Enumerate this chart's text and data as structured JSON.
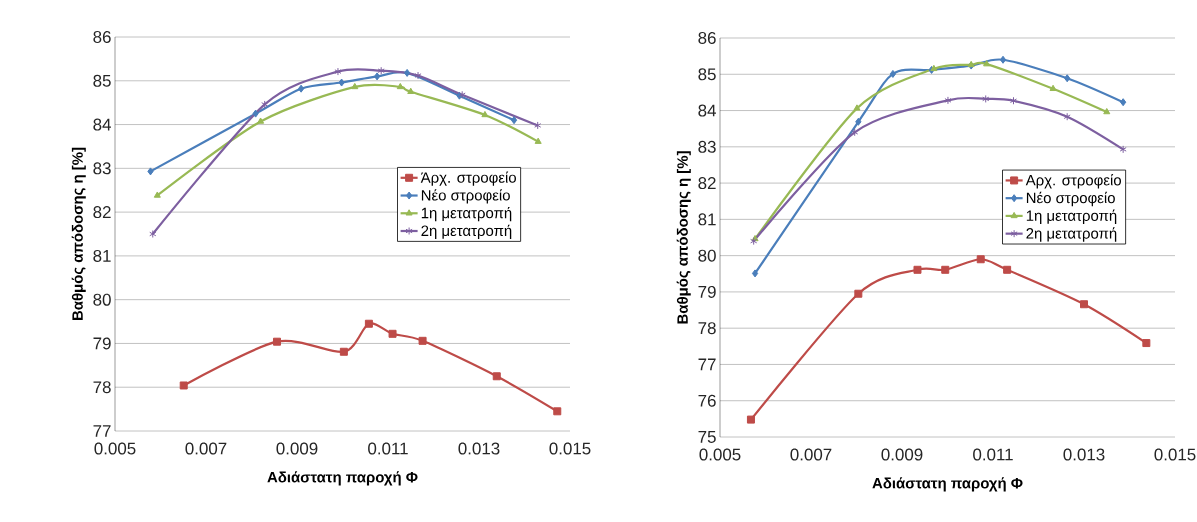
{
  "chart_data": [
    {
      "type": "line",
      "xlabel": "Αδιάστατη παροχή Φ",
      "ylabel": "Βαθμός απόδοσης η [%]",
      "xlim": [
        0.005,
        0.015
      ],
      "xticks": [
        0.005,
        0.007,
        0.009,
        0.011,
        0.013,
        0.015
      ],
      "ylim": [
        77,
        86
      ],
      "yticks": [
        77,
        78,
        79,
        80,
        81,
        82,
        83,
        84,
        85,
        86
      ],
      "grid": "y",
      "legend": "right",
      "line_style": "solid",
      "series": [
        {
          "name": "Άρχ. στροφείο",
          "color": "#be4b48",
          "marker": "square",
          "x": [
            0.00651,
            0.00856,
            0.01003,
            0.01058,
            0.0111,
            0.01176,
            0.01339,
            0.01472
          ],
          "values": [
            78.04,
            79.04,
            78.81,
            79.45,
            79.22,
            79.06,
            78.25,
            77.45
          ]
        },
        {
          "name": "Νέο στροφείο",
          "color": "#4a7ebb",
          "marker": "diamond",
          "x": [
            0.00578,
            0.00809,
            0.00909,
            0.00998,
            0.01076,
            0.01142,
            0.01257,
            0.01377
          ],
          "values": [
            82.93,
            84.25,
            84.82,
            84.96,
            85.1,
            85.18,
            84.66,
            84.1
          ]
        },
        {
          "name": "1η μετατροπή",
          "color": "#98b954",
          "marker": "triangle",
          "x": [
            0.00593,
            0.0082,
            0.01027,
            0.01127,
            0.0115,
            0.01313,
            0.0143
          ],
          "values": [
            82.38,
            84.07,
            84.86,
            84.86,
            84.75,
            84.22,
            83.61
          ]
        },
        {
          "name": "2η μετατροπή",
          "color": "#7d5fa0",
          "marker": "cross",
          "x": [
            0.00583,
            0.00829,
            0.0099,
            0.01085,
            0.01166,
            0.01263,
            0.01429
          ],
          "values": [
            81.5,
            84.46,
            85.21,
            85.23,
            85.12,
            84.68,
            83.98
          ]
        }
      ]
    },
    {
      "type": "line",
      "xlabel": "Αδιάστατη παροχή Φ",
      "ylabel": "Βαθμός απόδοσης η [%]",
      "xlim": [
        0.005,
        0.015
      ],
      "xticks": [
        0.005,
        0.007,
        0.009,
        0.011,
        0.013,
        0.015
      ],
      "ylim": [
        75,
        86
      ],
      "yticks": [
        75,
        76,
        77,
        78,
        79,
        80,
        81,
        82,
        83,
        84,
        85,
        86
      ],
      "grid": "y",
      "legend": "right",
      "line_style": "solid",
      "series": [
        {
          "name": "Αρχ. στροφείο",
          "color": "#be4b48",
          "marker": "square",
          "x": [
            0.00568,
            0.00804,
            0.00934,
            0.00995,
            0.01073,
            0.01131,
            0.013,
            0.01437
          ],
          "values": [
            75.48,
            78.95,
            79.61,
            79.61,
            79.9,
            79.61,
            78.66,
            77.59
          ]
        },
        {
          "name": "Νέο στροφείο",
          "color": "#4a7ebb",
          "marker": "diamond",
          "x": [
            0.00577,
            0.00804,
            0.0088,
            0.00965,
            0.01052,
            0.01122,
            0.01263,
            0.01386
          ],
          "values": [
            79.51,
            83.69,
            85.01,
            85.12,
            85.24,
            85.4,
            84.89,
            84.23
          ]
        },
        {
          "name": "1η μετατροπή",
          "color": "#98b954",
          "marker": "triangle",
          "x": [
            0.00577,
            0.00801,
            0.0097,
            0.01052,
            0.01086,
            0.01232,
            0.0135
          ],
          "values": [
            80.46,
            84.06,
            85.15,
            85.26,
            85.28,
            84.6,
            83.96
          ]
        },
        {
          "name": "2η μετατροπή",
          "color": "#7d5fa0",
          "marker": "cross",
          "x": [
            0.00574,
            0.00796,
            0.01001,
            0.01084,
            0.01145,
            0.01263,
            0.01386
          ],
          "values": [
            80.4,
            83.4,
            84.28,
            84.32,
            84.27,
            83.83,
            82.93
          ]
        }
      ]
    }
  ]
}
